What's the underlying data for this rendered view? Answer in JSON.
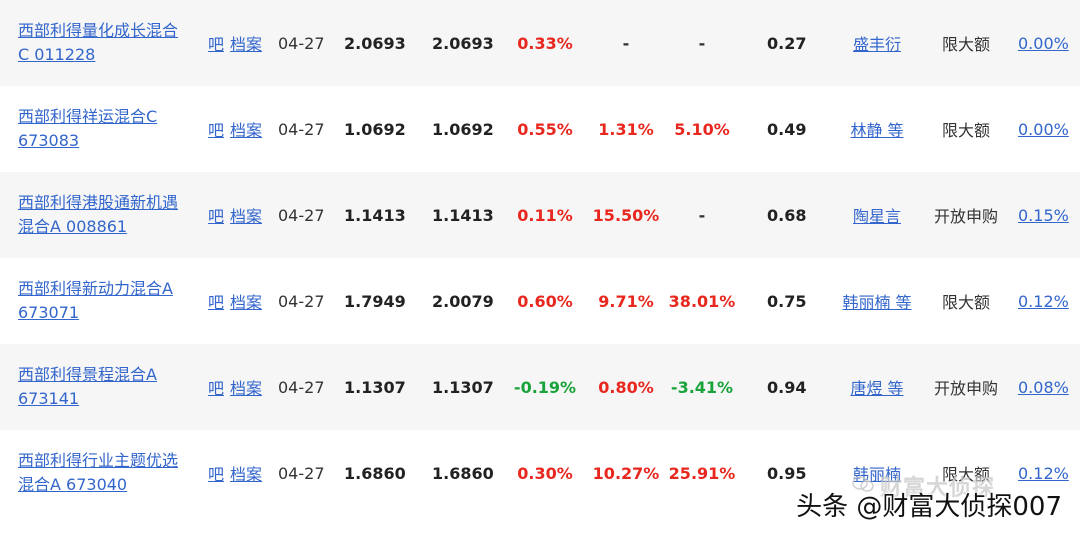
{
  "rows": [
    {
      "name_line1": "西部利得量化成长混合",
      "name_line2": "C  011228",
      "ba": "吧",
      "dangan": "档案",
      "date": "04-27",
      "nav": "2.0693",
      "acc_nav": "2.0693",
      "r1": "0.33%",
      "r1_dir": "up",
      "r2": "-",
      "r2_dir": "dash",
      "r3": "-",
      "r3_dir": "dash",
      "fee": "0.27",
      "manager": "盛丰衍",
      "status": "限大额",
      "rate": "0.00%"
    },
    {
      "name_line1": "西部利得祥运混合C",
      "name_line2": "673083",
      "ba": "吧",
      "dangan": "档案",
      "date": "04-27",
      "nav": "1.0692",
      "acc_nav": "1.0692",
      "r1": "0.55%",
      "r1_dir": "up",
      "r2": "1.31%",
      "r2_dir": "up",
      "r3": "5.10%",
      "r3_dir": "up",
      "fee": "0.49",
      "manager": "林静 等",
      "status": "限大额",
      "rate": "0.00%"
    },
    {
      "name_line1": "西部利得港股通新机遇",
      "name_line2": "混合A  008861",
      "ba": "吧",
      "dangan": "档案",
      "date": "04-27",
      "nav": "1.1413",
      "acc_nav": "1.1413",
      "r1": "0.11%",
      "r1_dir": "up",
      "r2": "15.50%",
      "r2_dir": "up",
      "r3": "-",
      "r3_dir": "dash",
      "fee": "0.68",
      "manager": "陶星言",
      "status": "开放申购",
      "rate": "0.15%"
    },
    {
      "name_line1": "西部利得新动力混合A",
      "name_line2": "673071",
      "ba": "吧",
      "dangan": "档案",
      "date": "04-27",
      "nav": "1.7949",
      "acc_nav": "2.0079",
      "r1": "0.60%",
      "r1_dir": "up",
      "r2": "9.71%",
      "r2_dir": "up",
      "r3": "38.01%",
      "r3_dir": "up",
      "fee": "0.75",
      "manager": "韩丽楠 等",
      "status": "限大额",
      "rate": "0.12%"
    },
    {
      "name_line1": "西部利得景程混合A",
      "name_line2": "673141",
      "ba": "吧",
      "dangan": "档案",
      "date": "04-27",
      "nav": "1.1307",
      "acc_nav": "1.1307",
      "r1": "-0.19%",
      "r1_dir": "down",
      "r2": "0.80%",
      "r2_dir": "up",
      "r3": "-3.41%",
      "r3_dir": "down",
      "fee": "0.94",
      "manager": "唐煜 等",
      "status": "开放申购",
      "rate": "0.08%"
    },
    {
      "name_line1": "西部利得行业主题优选",
      "name_line2": "混合A  673040",
      "ba": "吧",
      "dangan": "档案",
      "date": "04-27",
      "nav": "1.6860",
      "acc_nav": "1.6860",
      "r1": "0.30%",
      "r1_dir": "up",
      "r2": "10.27%",
      "r2_dir": "up",
      "r3": "25.91%",
      "r3_dir": "up",
      "fee": "0.95",
      "manager": "韩丽楠",
      "status": "限大额",
      "rate": "0.12%"
    }
  ],
  "watermark_faint": "财富大侦探",
  "watermark": "头条 @财富大侦探007",
  "colors": {
    "up": "#e8281f",
    "down": "#1aa33a",
    "link": "#3366cc",
    "row_alt": "#f6f6f6"
  }
}
